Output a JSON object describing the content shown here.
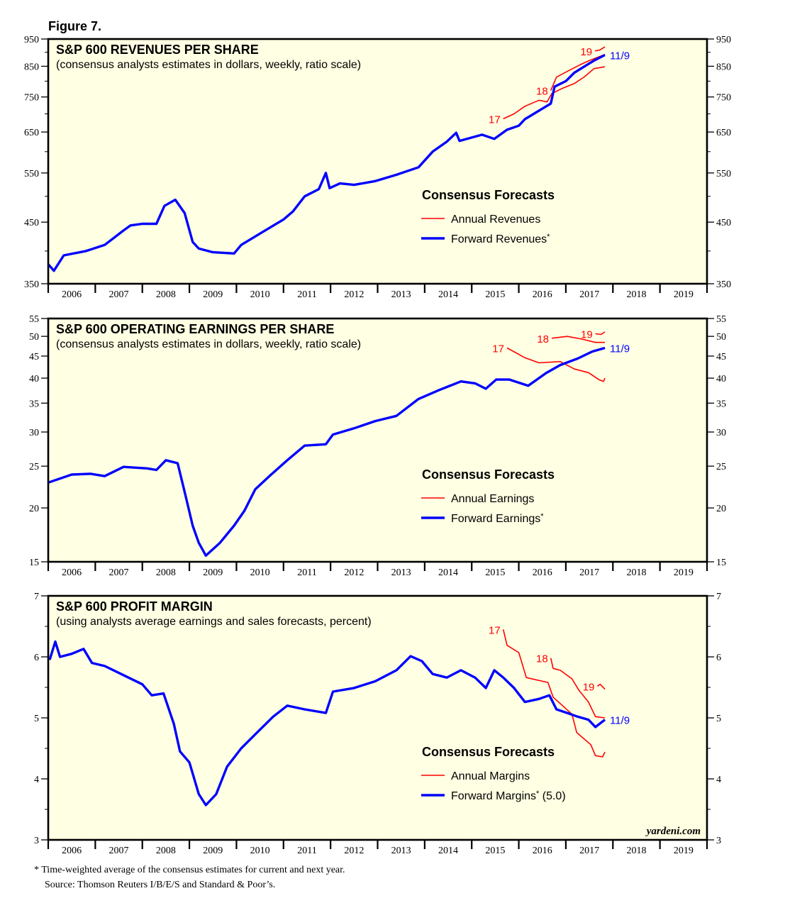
{
  "figure_label": "Figure 7.",
  "footnote": "*  Time-weighted average of the consensus estimates for current and next year.",
  "source": "Source: Thomson Reuters I/B/E/S and Standard & Poor’s.",
  "watermark": "yardeni.com",
  "colors": {
    "background": "#FFFFE3",
    "annual": "#FF0000",
    "forward": "#0000FF",
    "axis": "#000000"
  },
  "chart_data": [
    {
      "type": "line",
      "title": "S&P 600 REVENUES PER SHARE",
      "subtitle": "(consensus analysts estimates in dollars, weekly, ratio scale)",
      "yscale": "log",
      "ylim": [
        350,
        950
      ],
      "yticks": [
        350,
        450,
        550,
        650,
        750,
        850,
        950
      ],
      "yminor": [
        400,
        500,
        600,
        700,
        800,
        900
      ],
      "xlim": [
        2006,
        2020
      ],
      "xticklabels": [
        "2006",
        "2007",
        "2008",
        "2009",
        "2010",
        "2011",
        "2012",
        "2013",
        "2014",
        "2015",
        "2016",
        "2017",
        "2018",
        "2019"
      ],
      "grid": false,
      "legend": {
        "title": "Consensus Forecasts",
        "annual": "Annual Revenues",
        "forward": "Forward Revenues",
        "forward_mark": "*",
        "forward_suffix": "",
        "placement": "center-right"
      },
      "forward": {
        "label": "11/9",
        "points": [
          [
            2006.0,
            379
          ],
          [
            2006.12,
            369
          ],
          [
            2006.33,
            393
          ],
          [
            2006.8,
            400
          ],
          [
            2007.2,
            410
          ],
          [
            2007.6,
            435
          ],
          [
            2007.75,
            444
          ],
          [
            2008.0,
            447
          ],
          [
            2008.3,
            447
          ],
          [
            2008.47,
            481
          ],
          [
            2008.7,
            493
          ],
          [
            2008.9,
            467
          ],
          [
            2009.07,
            415
          ],
          [
            2009.2,
            404
          ],
          [
            2009.5,
            398
          ],
          [
            2009.95,
            396
          ],
          [
            2010.1,
            410
          ],
          [
            2010.55,
            432
          ],
          [
            2011.0,
            455
          ],
          [
            2011.2,
            470
          ],
          [
            2011.45,
            500
          ],
          [
            2011.75,
            515
          ],
          [
            2011.9,
            550
          ],
          [
            2011.98,
            517
          ],
          [
            2012.2,
            527
          ],
          [
            2012.5,
            524
          ],
          [
            2012.95,
            532
          ],
          [
            2013.4,
            546
          ],
          [
            2013.87,
            563
          ],
          [
            2014.17,
            600
          ],
          [
            2014.47,
            625
          ],
          [
            2014.67,
            648
          ],
          [
            2014.74,
            627
          ],
          [
            2015.22,
            643
          ],
          [
            2015.48,
            632
          ],
          [
            2015.75,
            656
          ],
          [
            2016.0,
            667
          ],
          [
            2016.13,
            685
          ],
          [
            2016.5,
            715
          ],
          [
            2016.68,
            730
          ],
          [
            2016.76,
            782
          ],
          [
            2017.0,
            800
          ],
          [
            2017.18,
            828
          ],
          [
            2017.48,
            858
          ],
          [
            2017.6,
            870
          ],
          [
            2017.83,
            890
          ]
        ]
      },
      "annual": [
        {
          "label": "17",
          "points": [
            [
              2015.67,
              686
            ],
            [
              2015.9,
              700
            ],
            [
              2016.13,
              722
            ],
            [
              2016.43,
              740
            ],
            [
              2016.6,
              735
            ],
            [
              2016.7,
              760
            ],
            [
              2016.9,
              775
            ],
            [
              2017.18,
              792
            ],
            [
              2017.4,
              815
            ],
            [
              2017.6,
              842
            ],
            [
              2017.83,
              848
            ]
          ]
        },
        {
          "label": "18",
          "points": [
            [
              2016.68,
              770
            ],
            [
              2016.8,
              813
            ],
            [
              2017.0,
              830
            ],
            [
              2017.3,
              855
            ],
            [
              2017.5,
              870
            ],
            [
              2017.83,
              892
            ]
          ]
        },
        {
          "label": "19",
          "points": [
            [
              2017.62,
              905
            ],
            [
              2017.72,
              908
            ],
            [
              2017.83,
              920
            ]
          ]
        }
      ]
    },
    {
      "type": "line",
      "title": "S&P 600 OPERATING EARNINGS PER SHARE",
      "subtitle": "(consensus analysts estimates in dollars, weekly, ratio scale)",
      "yscale": "log",
      "ylim": [
        15,
        55
      ],
      "yticks": [
        15,
        20,
        25,
        30,
        35,
        40,
        45,
        50,
        55
      ],
      "yminor": [],
      "xlim": [
        2006,
        2020
      ],
      "xticklabels": [
        "2006",
        "2007",
        "2008",
        "2009",
        "2010",
        "2011",
        "2012",
        "2013",
        "2014",
        "2015",
        "2016",
        "2017",
        "2018",
        "2019"
      ],
      "grid": false,
      "legend": {
        "title": "Consensus Forecasts",
        "annual": "Annual Earnings",
        "forward": "Forward Earnings",
        "forward_mark": "*",
        "forward_suffix": "",
        "placement": "center-right"
      },
      "forward": {
        "label": "11/9",
        "points": [
          [
            2006.0,
            22.9
          ],
          [
            2006.5,
            23.9
          ],
          [
            2006.9,
            24.0
          ],
          [
            2007.2,
            23.7
          ],
          [
            2007.6,
            24.9
          ],
          [
            2008.1,
            24.7
          ],
          [
            2008.3,
            24.5
          ],
          [
            2008.5,
            25.8
          ],
          [
            2008.75,
            25.4
          ],
          [
            2008.92,
            21.3
          ],
          [
            2009.07,
            18.2
          ],
          [
            2009.2,
            16.6
          ],
          [
            2009.35,
            15.5
          ],
          [
            2009.65,
            16.6
          ],
          [
            2009.95,
            18.2
          ],
          [
            2010.17,
            19.7
          ],
          [
            2010.4,
            22.1
          ],
          [
            2010.7,
            23.7
          ],
          [
            2011.08,
            25.8
          ],
          [
            2011.45,
            27.9
          ],
          [
            2011.9,
            28.1
          ],
          [
            2012.05,
            29.6
          ],
          [
            2012.5,
            30.6
          ],
          [
            2012.95,
            31.8
          ],
          [
            2013.4,
            32.7
          ],
          [
            2013.87,
            35.8
          ],
          [
            2014.3,
            37.5
          ],
          [
            2014.77,
            39.3
          ],
          [
            2015.07,
            38.9
          ],
          [
            2015.3,
            37.8
          ],
          [
            2015.52,
            39.7
          ],
          [
            2015.8,
            39.7
          ],
          [
            2016.2,
            38.4
          ],
          [
            2016.58,
            41.1
          ],
          [
            2016.88,
            42.9
          ],
          [
            2017.25,
            44.4
          ],
          [
            2017.56,
            46.1
          ],
          [
            2017.83,
            47.0
          ]
        ]
      },
      "annual": [
        {
          "label": "17",
          "points": [
            [
              2015.75,
              47.0
            ],
            [
              2016.13,
              44.6
            ],
            [
              2016.43,
              43.4
            ],
            [
              2016.88,
              43.7
            ],
            [
              2017.18,
              42.0
            ],
            [
              2017.48,
              41.2
            ],
            [
              2017.7,
              39.7
            ],
            [
              2017.8,
              39.3
            ],
            [
              2017.83,
              40.0
            ]
          ]
        },
        {
          "label": "18",
          "points": [
            [
              2016.7,
              49.5
            ],
            [
              2017.03,
              50.0
            ],
            [
              2017.33,
              49.3
            ],
            [
              2017.63,
              48.4
            ],
            [
              2017.83,
              48.4
            ]
          ]
        },
        {
          "label": "19",
          "points": [
            [
              2017.63,
              50.7
            ],
            [
              2017.75,
              50.5
            ],
            [
              2017.83,
              51.2
            ]
          ]
        }
      ]
    },
    {
      "type": "line",
      "title": "S&P 600 PROFIT MARGIN",
      "subtitle": "(using analysts average earnings and sales forecasts, percent)",
      "yscale": "linear",
      "ylim": [
        3,
        7
      ],
      "yticks": [
        3,
        4,
        5,
        6,
        7
      ],
      "yminor": [
        3.5,
        4.5,
        5.5,
        6.5
      ],
      "xlim": [
        2006,
        2020
      ],
      "xticklabels": [
        "2006",
        "2007",
        "2008",
        "2009",
        "2010",
        "2011",
        "2012",
        "2013",
        "2014",
        "2015",
        "2016",
        "2017",
        "2018",
        "2019"
      ],
      "grid": false,
      "legend": {
        "title": "Consensus Forecasts",
        "annual": "Annual Margins",
        "forward": "Forward Margins",
        "forward_mark": "*",
        "forward_suffix": " (5.0)",
        "placement": "center-right"
      },
      "forward": {
        "label": "11/9",
        "points": [
          [
            2006.03,
            5.95
          ],
          [
            2006.15,
            6.25
          ],
          [
            2006.25,
            6.0
          ],
          [
            2006.5,
            6.05
          ],
          [
            2006.75,
            6.13
          ],
          [
            2006.93,
            5.9
          ],
          [
            2007.2,
            5.85
          ],
          [
            2007.6,
            5.7
          ],
          [
            2008.0,
            5.55
          ],
          [
            2008.2,
            5.37
          ],
          [
            2008.45,
            5.4
          ],
          [
            2008.67,
            4.9
          ],
          [
            2008.8,
            4.45
          ],
          [
            2009.0,
            4.27
          ],
          [
            2009.2,
            3.75
          ],
          [
            2009.35,
            3.57
          ],
          [
            2009.57,
            3.75
          ],
          [
            2009.8,
            4.2
          ],
          [
            2010.1,
            4.5
          ],
          [
            2010.4,
            4.73
          ],
          [
            2010.78,
            5.02
          ],
          [
            2011.08,
            5.2
          ],
          [
            2011.45,
            5.14
          ],
          [
            2011.9,
            5.08
          ],
          [
            2012.05,
            5.43
          ],
          [
            2012.5,
            5.49
          ],
          [
            2012.95,
            5.6
          ],
          [
            2013.4,
            5.78
          ],
          [
            2013.7,
            6.01
          ],
          [
            2013.94,
            5.93
          ],
          [
            2014.17,
            5.72
          ],
          [
            2014.47,
            5.66
          ],
          [
            2014.77,
            5.78
          ],
          [
            2015.07,
            5.66
          ],
          [
            2015.3,
            5.49
          ],
          [
            2015.48,
            5.78
          ],
          [
            2015.67,
            5.66
          ],
          [
            2015.9,
            5.49
          ],
          [
            2016.13,
            5.26
          ],
          [
            2016.43,
            5.31
          ],
          [
            2016.65,
            5.37
          ],
          [
            2016.8,
            5.14
          ],
          [
            2017.03,
            5.08
          ],
          [
            2017.25,
            5.02
          ],
          [
            2017.48,
            4.97
          ],
          [
            2017.63,
            4.85
          ],
          [
            2017.83,
            4.97
          ]
        ]
      },
      "annual": [
        {
          "label": "17",
          "points": [
            [
              2015.67,
              6.45
            ],
            [
              2015.75,
              6.19
            ],
            [
              2016.0,
              6.07
            ],
            [
              2016.16,
              5.66
            ],
            [
              2016.62,
              5.58
            ],
            [
              2016.73,
              5.34
            ],
            [
              2017.13,
              5.06
            ],
            [
              2017.23,
              4.76
            ],
            [
              2017.53,
              4.56
            ],
            [
              2017.63,
              4.38
            ],
            [
              2017.78,
              4.36
            ],
            [
              2017.83,
              4.44
            ]
          ]
        },
        {
          "label": "18",
          "points": [
            [
              2016.68,
              5.98
            ],
            [
              2016.73,
              5.81
            ],
            [
              2016.88,
              5.78
            ],
            [
              2017.13,
              5.64
            ],
            [
              2017.28,
              5.45
            ],
            [
              2017.48,
              5.26
            ],
            [
              2017.63,
              5.02
            ],
            [
              2017.83,
              5.0
            ]
          ]
        },
        {
          "label": "19",
          "points": [
            [
              2017.67,
              5.52
            ],
            [
              2017.73,
              5.55
            ],
            [
              2017.83,
              5.47
            ]
          ]
        }
      ]
    }
  ]
}
